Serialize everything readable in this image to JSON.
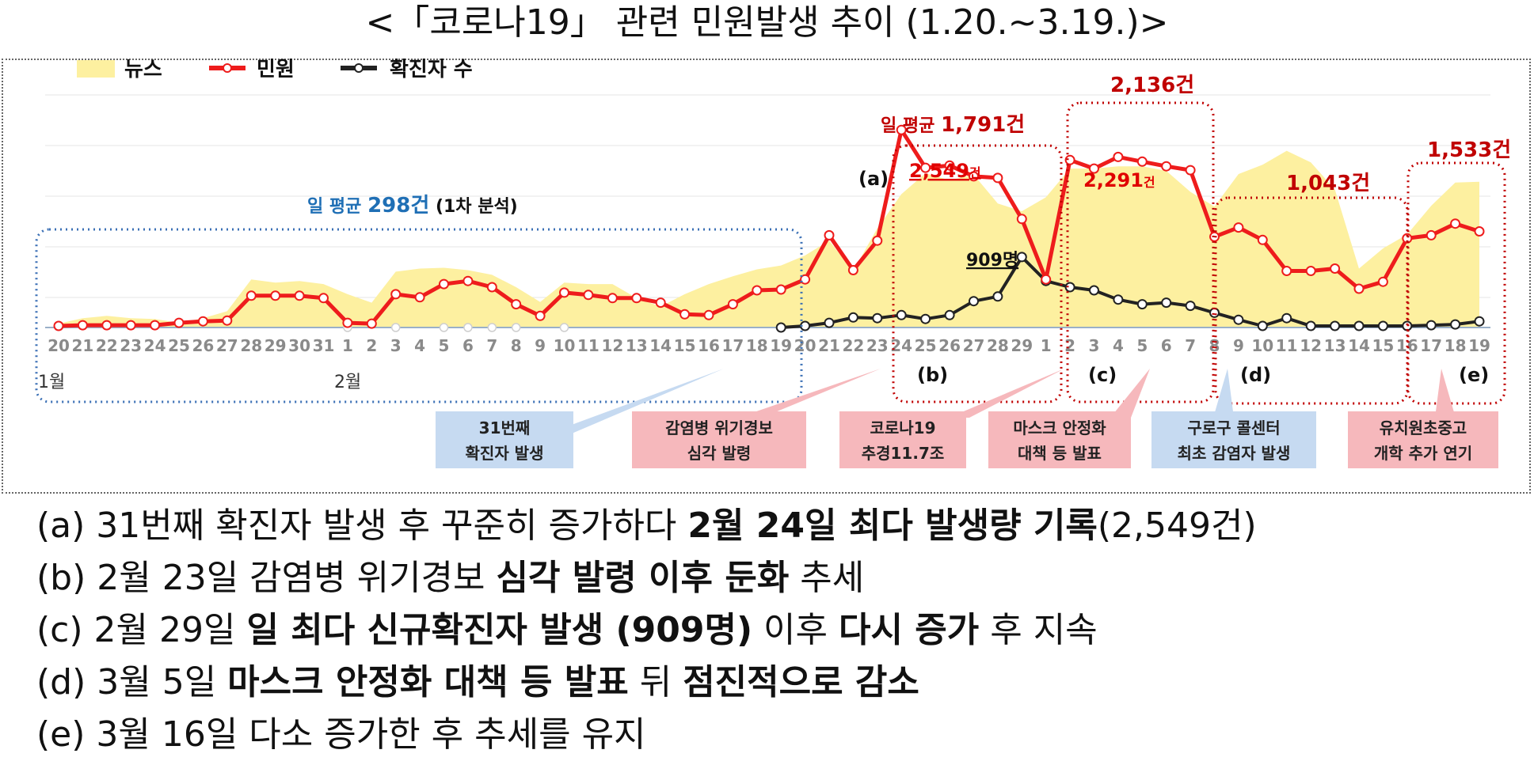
{
  "title": "<「코로나19」 관련 민원발생 추이 (1.20.~3.19.)>",
  "legend": {
    "news": "뉴스",
    "complaints": "민원",
    "confirmed": "확진자 수"
  },
  "colors": {
    "news": "#fdf0a0",
    "complaints": "#ee1c1c",
    "confirmed": "#222222",
    "avg_blue": "#1f6fb5",
    "avg_red": "#c00000",
    "box_blue": "#3a6fb5",
    "box_red": "#c00000",
    "event_blue": "#c6daf1",
    "event_red": "#f6b8bc"
  },
  "avg_labels": {
    "first": {
      "prefix": "일 평균",
      "value": "298건",
      "suffix": "(1차 분석)"
    },
    "second": {
      "prefix": "일 평균",
      "value": "1,791건"
    },
    "c": "2,136건",
    "d": "1,043건",
    "e": "1,533건"
  },
  "point_labels": {
    "a": "(a)",
    "peak": "2,549",
    "peak_unit": "건",
    "p2": "2,291",
    "p2_unit": "건",
    "confirmed_peak": "909명"
  },
  "region_labels": [
    "(b)",
    "(c)",
    "(d)",
    "(e)"
  ],
  "month_labels": [
    "1월",
    "2월"
  ],
  "events": [
    {
      "line1": "31번째",
      "line2": "확진자 발생"
    },
    {
      "line1": "감염병 위기경보",
      "line2": "심각 발령"
    },
    {
      "line1": "코로나19",
      "line2": "추경11.7조"
    },
    {
      "line1": "마스크 안정화",
      "line2": "대책 등 발표"
    },
    {
      "line1": "구로구 콜센터",
      "line2": "최초 감염자 발생"
    },
    {
      "line1": "유치원초중고",
      "line2": "개학 추가 연기"
    }
  ],
  "chart_data": {
    "type": "line",
    "x": [
      "20",
      "21",
      "22",
      "23",
      "24",
      "25",
      "26",
      "27",
      "28",
      "29",
      "30",
      "31",
      "1",
      "2",
      "3",
      "4",
      "5",
      "6",
      "7",
      "8",
      "9",
      "10",
      "11",
      "12",
      "13",
      "14",
      "15",
      "16",
      "17",
      "18",
      "19",
      "20",
      "21",
      "22",
      "23",
      "24",
      "25",
      "26",
      "27",
      "28",
      "29",
      "1",
      "2",
      "3",
      "4",
      "5",
      "6",
      "7",
      "8",
      "9",
      "10",
      "11",
      "12",
      "13",
      "14",
      "15",
      "16",
      "17",
      "18",
      "19"
    ],
    "series": [
      {
        "name": "뉴스",
        "kind": "area",
        "values": [
          50,
          120,
          150,
          120,
          110,
          60,
          120,
          210,
          620,
          580,
          600,
          560,
          430,
          320,
          720,
          760,
          770,
          740,
          680,
          520,
          330,
          580,
          560,
          560,
          380,
          270,
          430,
          560,
          660,
          750,
          800,
          930,
          1120,
          730,
          1280,
          1720,
          1990,
          1900,
          1970,
          1600,
          1500,
          1680,
          2050,
          2050,
          2080,
          2080,
          2020,
          1750,
          1560,
          1980,
          2100,
          2280,
          2130,
          1780,
          760,
          1020,
          1200,
          1570,
          1870,
          1880
        ]
      },
      {
        "name": "민원",
        "kind": "line",
        "values": [
          20,
          30,
          30,
          30,
          30,
          60,
          80,
          90,
          410,
          410,
          410,
          380,
          60,
          50,
          430,
          390,
          560,
          600,
          520,
          300,
          150,
          450,
          420,
          380,
          380,
          320,
          170,
          160,
          300,
          480,
          490,
          620,
          1190,
          740,
          1120,
          2549,
          2060,
          2090,
          1950,
          1930,
          1400,
          620,
          2160,
          2050,
          2200,
          2140,
          2080,
          2030,
          1170,
          1290,
          1130,
          730,
          730,
          760,
          500,
          590,
          1150,
          1190,
          1340,
          1240
        ]
      },
      {
        "name": "확진자 수",
        "kind": "line",
        "values": [
          0,
          0,
          0,
          0,
          0,
          0,
          0,
          0,
          0,
          0,
          0,
          0,
          0,
          0,
          0,
          0,
          0,
          0,
          0,
          0,
          0,
          0,
          0,
          0,
          0,
          0,
          0,
          0,
          0,
          0,
          0,
          20,
          60,
          130,
          120,
          160,
          110,
          160,
          340,
          400,
          909,
          600,
          520,
          480,
          360,
          300,
          320,
          280,
          190,
          100,
          20,
          120,
          20,
          20,
          20,
          20,
          20,
          30,
          40,
          80
        ]
      }
    ],
    "unit": "건"
  },
  "notes": [
    {
      "pre": "(a) 31번째 확진자 발생 후 꾸준히 증가하다 ",
      "bold": "2월 24일 최다 발생량 기록",
      "post": "(2,549건)"
    },
    {
      "pre": "(b) 2월 23일 감염병 위기경보 ",
      "bold": "심각 발령 이후 둔화",
      "post": " 추세"
    },
    {
      "pre": "(c) 2월 29일 ",
      "bold": "일 최다 신규확진자 발생 (909명)",
      "post": " 이후 ",
      "bold2": "다시 증가",
      "post2": " 후 지속"
    },
    {
      "pre": "(d) 3월 5일 ",
      "bold": "마스크 안정화 대책 등 발표",
      "post": " 뒤 ",
      "bold2": "점진적으로 감소",
      "post2": ""
    },
    {
      "pre": "(e) 3월 16일 다소 증가한 후 추세를 유지",
      "bold": "",
      "post": ""
    }
  ]
}
